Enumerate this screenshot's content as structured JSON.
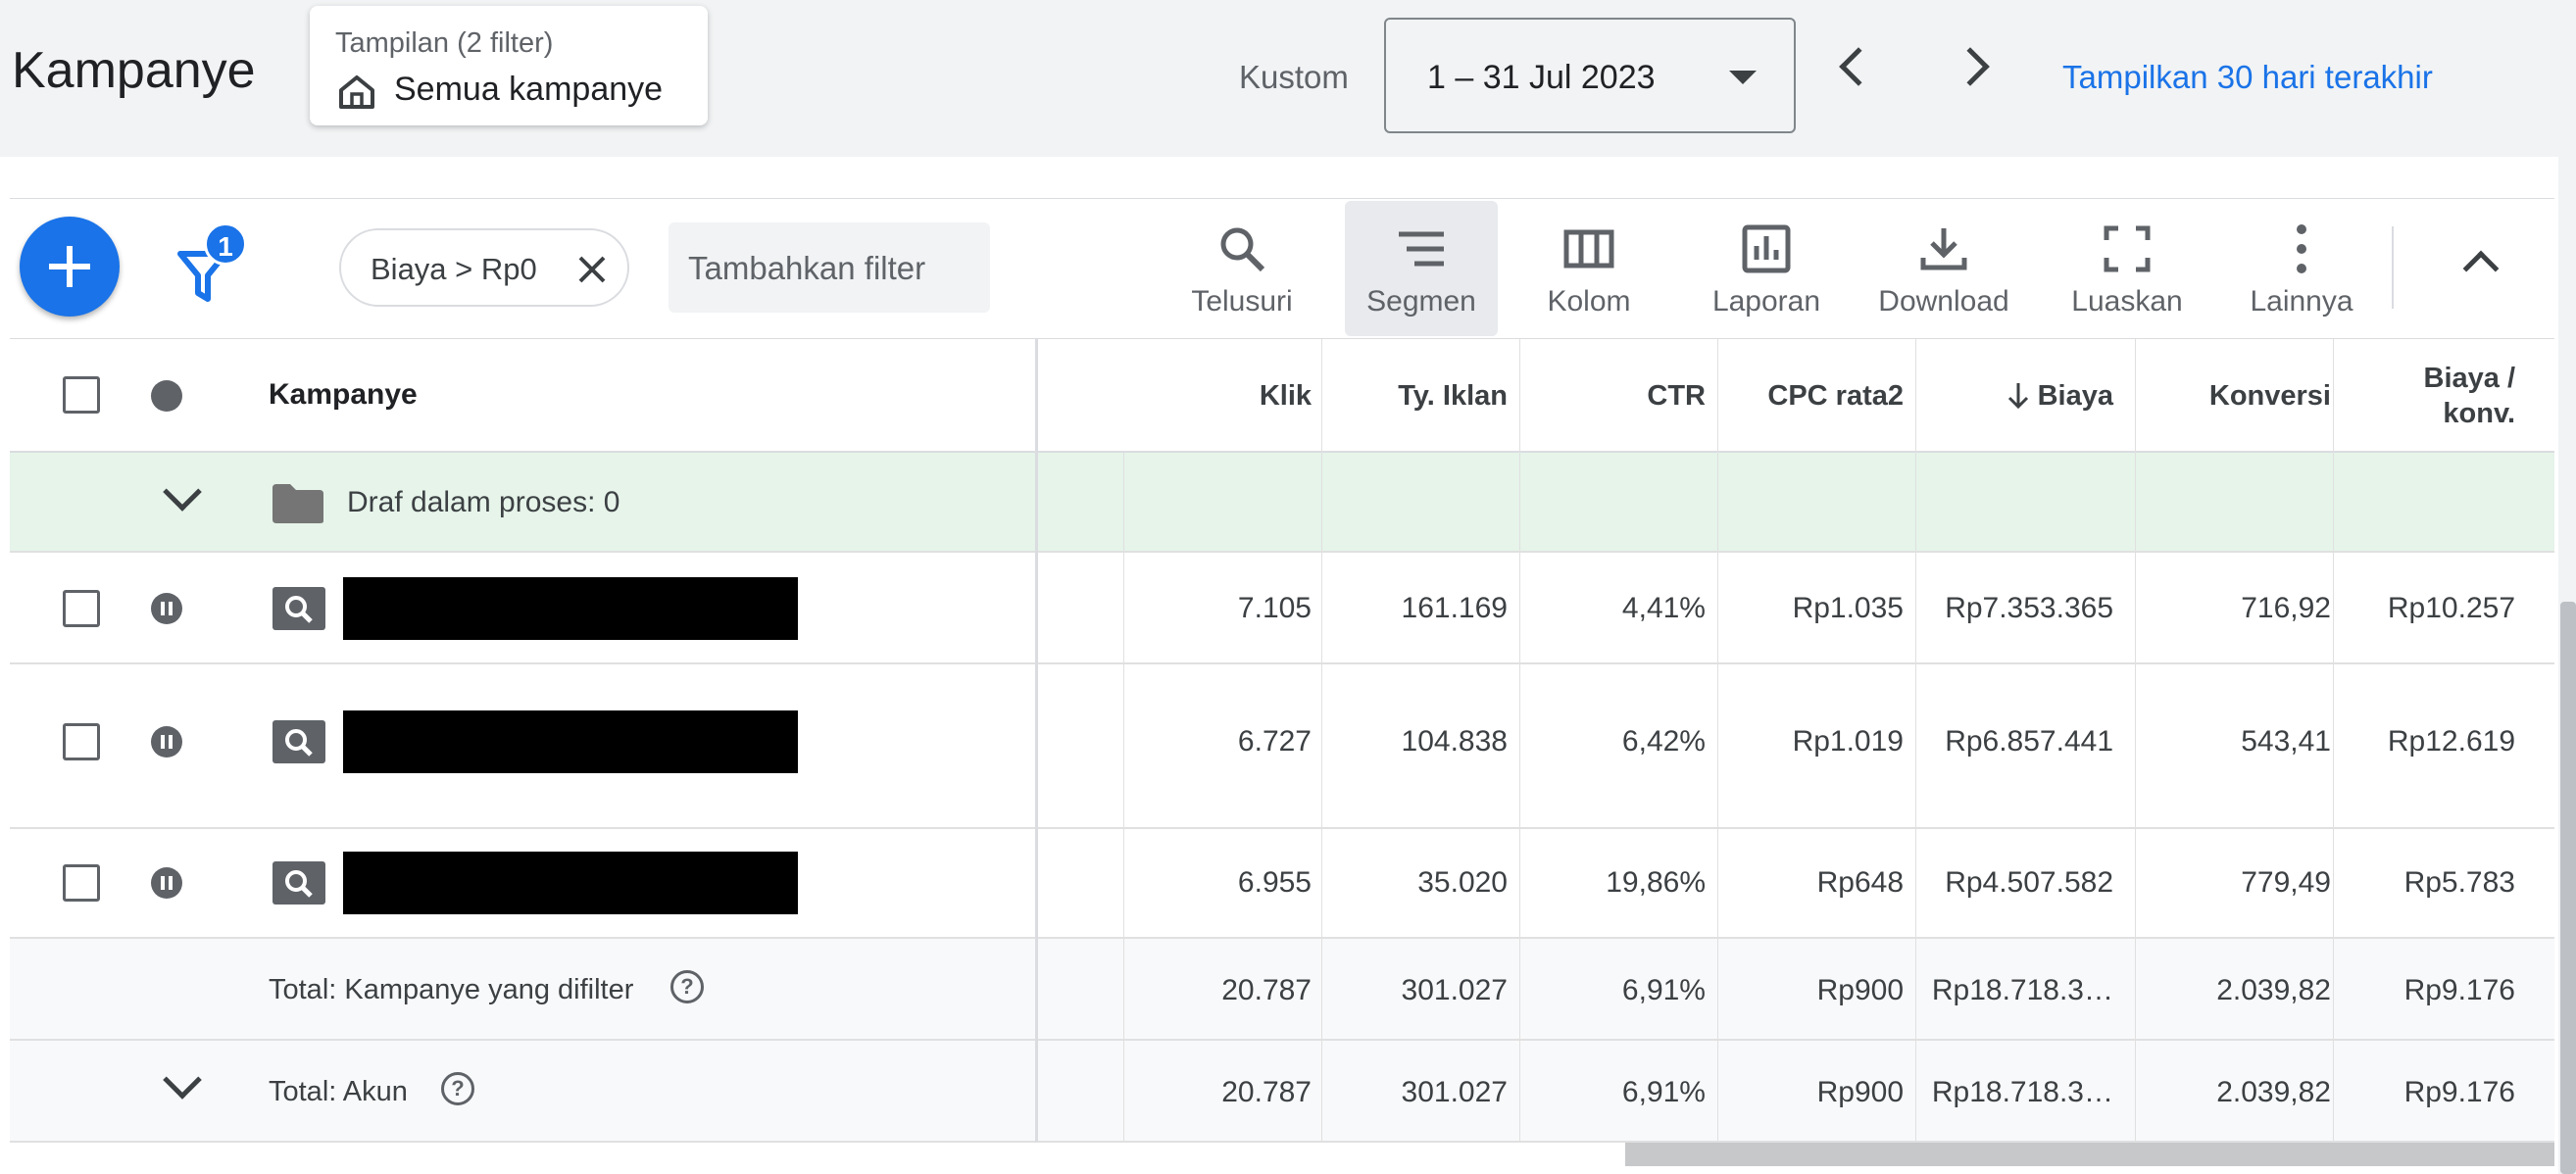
{
  "header": {
    "title": "Kampanye",
    "view_chip": {
      "subtitle": "Tampilan (2 filter)",
      "label": "Semua kampanye"
    },
    "date_preset": "Kustom",
    "date_range": "1 – 31 Jul 2023",
    "show_last_30": "Tampilkan 30 hari terakhir"
  },
  "toolbar": {
    "filter_badge": "1",
    "active_filter": "Biaya > Rp0",
    "add_filter": "Tambahkan filter",
    "tools": [
      {
        "label": "Telusuri",
        "icon": "search-icon"
      },
      {
        "label": "Segmen",
        "icon": "segment-icon"
      },
      {
        "label": "Kolom",
        "icon": "columns-icon"
      },
      {
        "label": "Laporan",
        "icon": "report-icon"
      },
      {
        "label": "Download",
        "icon": "download-icon"
      },
      {
        "label": "Luaskan",
        "icon": "expand-icon"
      },
      {
        "label": "Lainnya",
        "icon": "more-icon"
      }
    ]
  },
  "table": {
    "headers": {
      "campaign": "Kampanye",
      "clicks": "Klik",
      "impressions": "Ty. Iklan",
      "ctr": "CTR",
      "avg_cpc": "CPC rata2",
      "cost": "Biaya",
      "conversions": "Konversi",
      "cost_per_conv_1": "Biaya /",
      "cost_per_conv_2": "konv."
    },
    "draft_label": "Draf dalam proses: 0",
    "rows": [
      {
        "clicks": "7.105",
        "impressions": "161.169",
        "ctr": "4,41%",
        "avg_cpc": "Rp1.035",
        "cost": "Rp7.353.365",
        "conversions": "716,92",
        "cost_per_conv": "Rp10.257"
      },
      {
        "clicks": "6.727",
        "impressions": "104.838",
        "ctr": "6,42%",
        "avg_cpc": "Rp1.019",
        "cost": "Rp6.857.441",
        "conversions": "543,41",
        "cost_per_conv": "Rp12.619"
      },
      {
        "clicks": "6.955",
        "impressions": "35.020",
        "ctr": "19,86%",
        "avg_cpc": "Rp648",
        "cost": "Rp4.507.582",
        "conversions": "779,49",
        "cost_per_conv": "Rp5.783"
      }
    ],
    "totals": [
      {
        "label": "Total: Kampanye yang difilter",
        "clicks": "20.787",
        "impressions": "301.027",
        "ctr": "6,91%",
        "avg_cpc": "Rp900",
        "cost": "Rp18.718.3…",
        "conversions": "2.039,82",
        "cost_per_conv": "Rp9.176"
      },
      {
        "label": "Total: Akun",
        "clicks": "20.787",
        "impressions": "301.027",
        "ctr": "6,91%",
        "avg_cpc": "Rp900",
        "cost": "Rp18.718.3…",
        "conversions": "2.039,82",
        "cost_per_conv": "Rp9.176"
      }
    ]
  },
  "colors": {
    "primary_blue": "#1a73e8",
    "draft_row_bg": "#e6f4ea",
    "total_row_bg": "#f8f9fa",
    "header_bg": "#f1f3f4"
  }
}
